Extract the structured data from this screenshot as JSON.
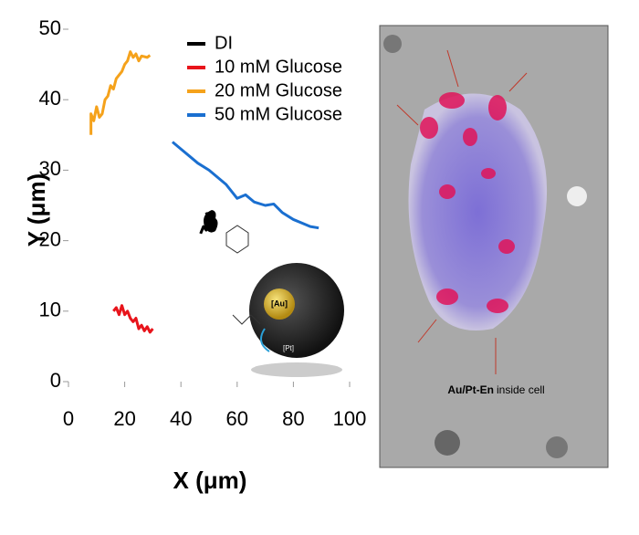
{
  "chart_data": {
    "type": "line",
    "xlabel": "X (μm)",
    "ylabel": "Y (μm)",
    "xlim": [
      0,
      100
    ],
    "ylim": [
      0,
      50
    ],
    "xticks": [
      0,
      20,
      40,
      60,
      80,
      100
    ],
    "yticks": [
      0,
      10,
      20,
      30,
      40,
      50
    ],
    "legend": "upper center",
    "series": [
      {
        "name": "DI",
        "color": "#000000",
        "x": [
          47,
          48,
          49,
          50,
          49
        ],
        "values": [
          21,
          22,
          21.5,
          23,
          24
        ]
      },
      {
        "name": "10 mM Glucose",
        "color": "#e8141b",
        "x": [
          16,
          17,
          18,
          19,
          20,
          21,
          22,
          23,
          24,
          25,
          26,
          27,
          28,
          29,
          30
        ],
        "values": [
          10,
          10.5,
          9.5,
          10.8,
          9.5,
          10,
          9,
          8.5,
          9,
          7.5,
          8,
          7.2,
          7.8,
          7,
          7.5
        ]
      },
      {
        "name": "20 mM Glucose",
        "color": "#f5a21b",
        "x": [
          8,
          8,
          9,
          10,
          11,
          12,
          13,
          14,
          15,
          16,
          17,
          18,
          19,
          20,
          21,
          22,
          23,
          24,
          25,
          26,
          28,
          29
        ],
        "values": [
          35,
          38,
          37,
          39,
          37.5,
          38,
          40,
          40.5,
          42,
          41.5,
          43,
          43.5,
          44,
          45,
          45.5,
          46.8,
          46,
          46.5,
          45.5,
          46.2,
          46,
          46.3
        ]
      },
      {
        "name": "50 mM Glucose",
        "color": "#1a6fd0",
        "x": [
          37,
          40,
          43,
          46,
          50,
          53,
          56,
          60,
          63,
          66,
          70,
          73,
          76,
          80,
          83,
          86,
          89
        ],
        "values": [
          34,
          33,
          32,
          31,
          30,
          29,
          28,
          26,
          26.5,
          25.5,
          25,
          25.2,
          24,
          23,
          22.5,
          22,
          21.8
        ]
      }
    ]
  },
  "illustration": {
    "labels": [
      "[Au]",
      "[Pt]"
    ]
  },
  "image": {
    "caption_bold": "Au/Pt-En",
    "caption": "inside cell"
  }
}
